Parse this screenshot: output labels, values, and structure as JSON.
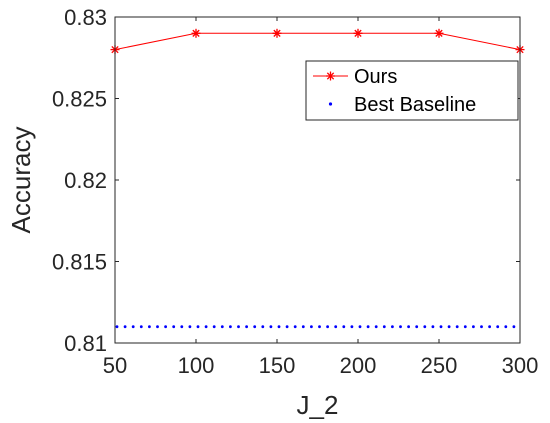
{
  "chart_data": {
    "type": "line",
    "xlabel": "J_2",
    "ylabel": "Accuracy",
    "x": [
      50,
      100,
      150,
      200,
      250,
      300
    ],
    "xlim": [
      50,
      300
    ],
    "ylim": [
      0.81,
      0.83
    ],
    "xticks": [
      50,
      100,
      150,
      200,
      250,
      300
    ],
    "xtick_labels": [
      "50",
      "100",
      "150",
      "200",
      "250",
      "300"
    ],
    "yticks": [
      0.81,
      0.815,
      0.82,
      0.825,
      0.83
    ],
    "ytick_labels": [
      "0.81",
      "0.815",
      "0.82",
      "0.825",
      "0.83"
    ],
    "grid": false,
    "legend_position": "top-right",
    "series": [
      {
        "name": "Ours",
        "values": [
          0.828,
          0.829,
          0.829,
          0.829,
          0.829,
          0.828
        ],
        "color": "#ff0000",
        "style": "solid",
        "marker": "asterisk"
      },
      {
        "name": "Best Baseline",
        "value": 0.811,
        "color": "#0000ff",
        "style": "dotted",
        "marker": "none"
      }
    ]
  }
}
